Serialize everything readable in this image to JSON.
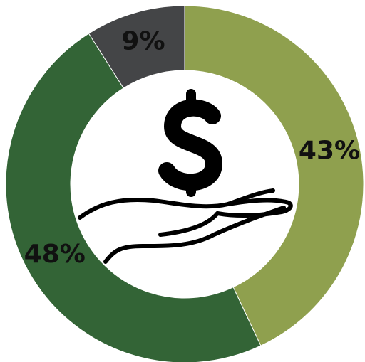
{
  "chart_data": {
    "type": "donut",
    "values": [
      43,
      48,
      9
    ],
    "value_labels": [
      "43%",
      "48%",
      "9%"
    ],
    "colors": [
      "#8fa04e",
      "#336436",
      "#444547"
    ]
  }
}
